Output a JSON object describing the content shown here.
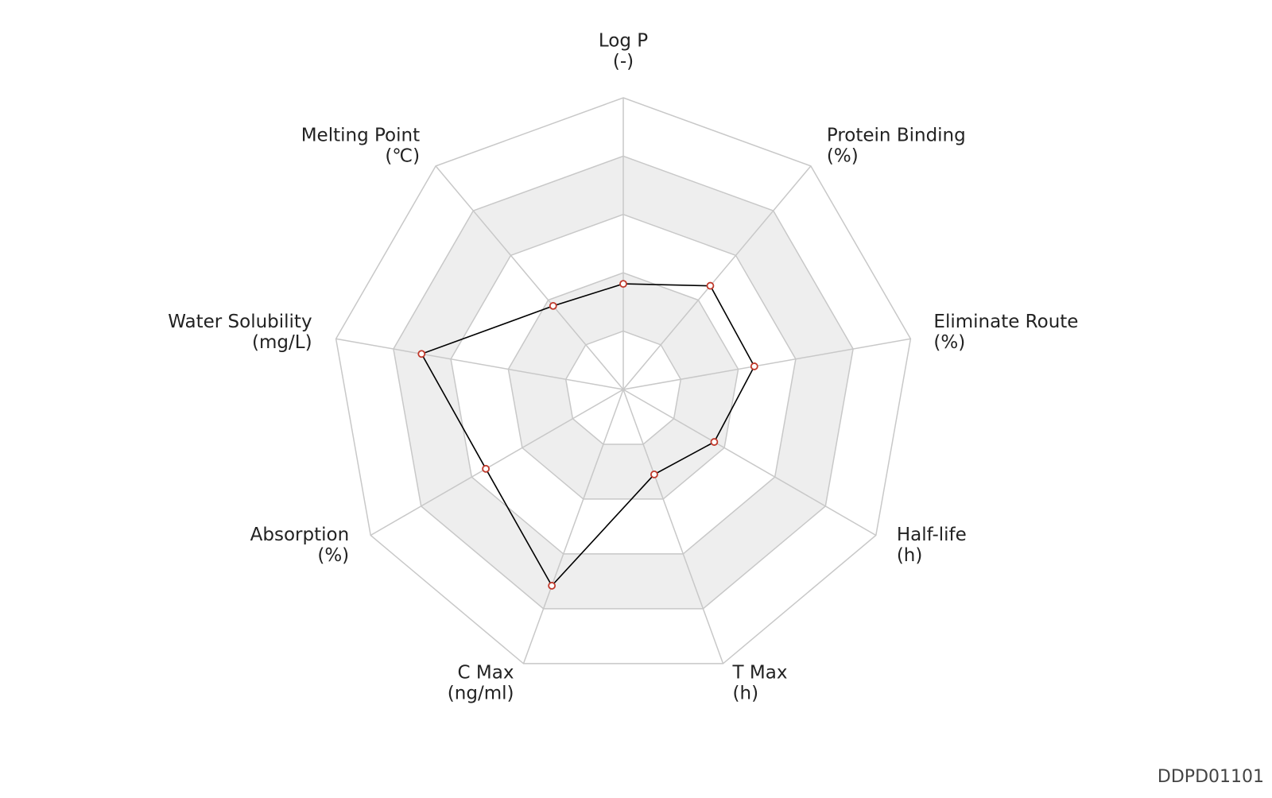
{
  "chart_data": {
    "type": "radar",
    "axes": [
      {
        "name": "Log P",
        "unit": "(-)"
      },
      {
        "name": "Protein Binding",
        "unit": "(%)"
      },
      {
        "name": "Eliminate Route",
        "unit": "(%)"
      },
      {
        "name": "Half-life",
        "unit": "(h)"
      },
      {
        "name": "T Max",
        "unit": "(h)"
      },
      {
        "name": "C Max",
        "unit": "(ng/ml)"
      },
      {
        "name": "Absorption",
        "unit": "(%)"
      },
      {
        "name": "Water Solubility",
        "unit": "(mg/L)"
      },
      {
        "name": "Melting Point",
        "unit": "(℃)"
      }
    ],
    "values": [
      1.81,
      2.32,
      2.28,
      1.8,
      1.55,
      3.58,
      2.72,
      3.51,
      1.87
    ],
    "rlim": [
      0,
      5
    ],
    "rticks": [
      0,
      1,
      2,
      3,
      4,
      5
    ],
    "line_color": "#000000",
    "marker_color": "#c0392b",
    "band_color": "#eeeeee",
    "grid_color": "#c8c8c8",
    "footer": "DDPD01101"
  }
}
